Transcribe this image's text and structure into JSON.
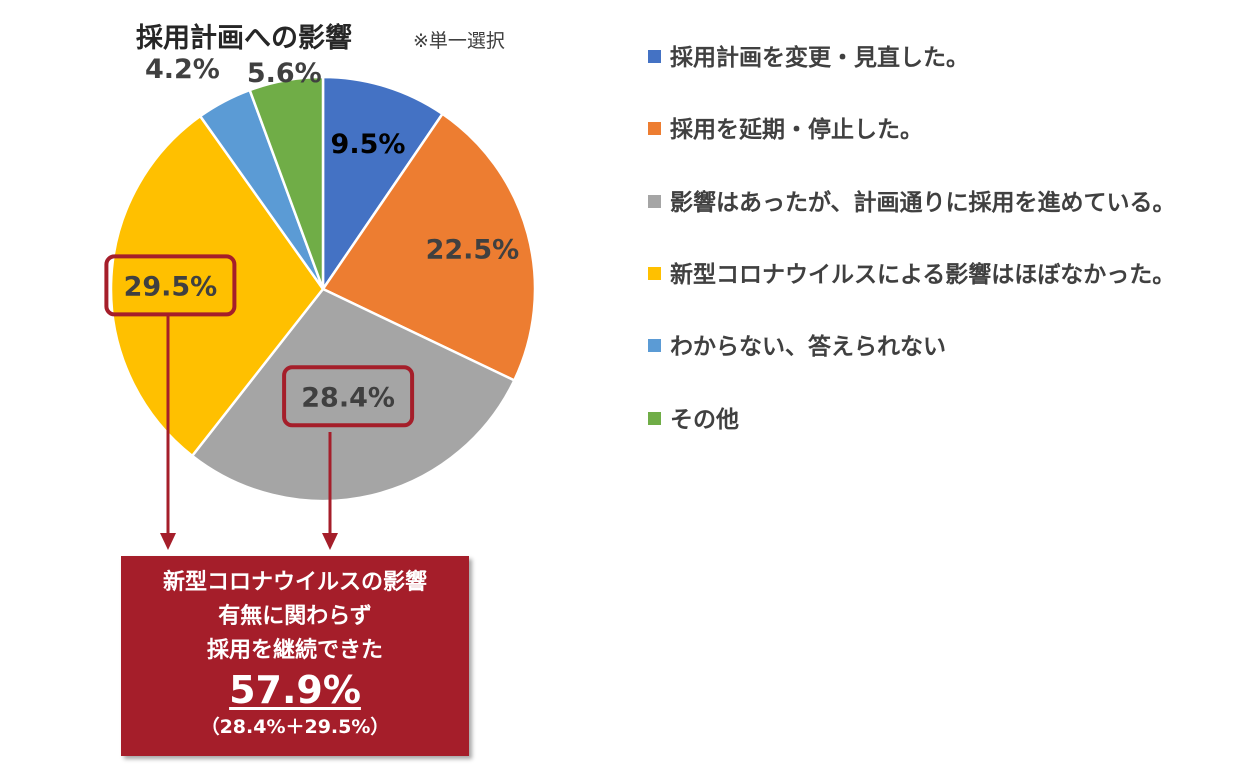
{
  "colors": {
    "blue": "#4472c4",
    "orange": "#ed7d31",
    "gray": "#a5a5a5",
    "yellow": "#ffc000",
    "lightblue": "#5b9bd5",
    "green": "#70ad47",
    "highlight": "#a51e2a"
  },
  "chart_data": {
    "type": "pie",
    "title": "採用計画への影響",
    "subtitle": "※単一選択",
    "legend_position": "right",
    "slices": [
      {
        "label": "採用計画を変更・見直した。",
        "value": 9.5,
        "value_label": "9.5%",
        "color": "#4472c4"
      },
      {
        "label": "採用を延期・停止した。",
        "value": 22.5,
        "value_label": "22.5%",
        "color": "#ed7d31"
      },
      {
        "label": "影響はあったが、計画通りに採用を進めている。",
        "value": 28.4,
        "value_label": "28.4%",
        "color": "#a5a5a5"
      },
      {
        "label": "新型コロナウイルスによる影響はほぼなかった。",
        "value": 29.5,
        "value_label": "29.5%",
        "color": "#ffc000"
      },
      {
        "label": "わからない、答えられない",
        "value": 4.2,
        "value_label": "4.2%",
        "color": "#5b9bd5"
      },
      {
        "label": "その他",
        "value": 5.6,
        "value_label": "5.6%",
        "color": "#70ad47"
      }
    ],
    "highlighted_labels": [
      "28.4%",
      "29.5%"
    ]
  },
  "callout": {
    "line1": "新型コロナウイルスの影響",
    "line2": "有無に関わらず",
    "line3": "採用を継続できた",
    "total": "57.9%",
    "breakdown": "（28.4%＋29.5%）"
  }
}
